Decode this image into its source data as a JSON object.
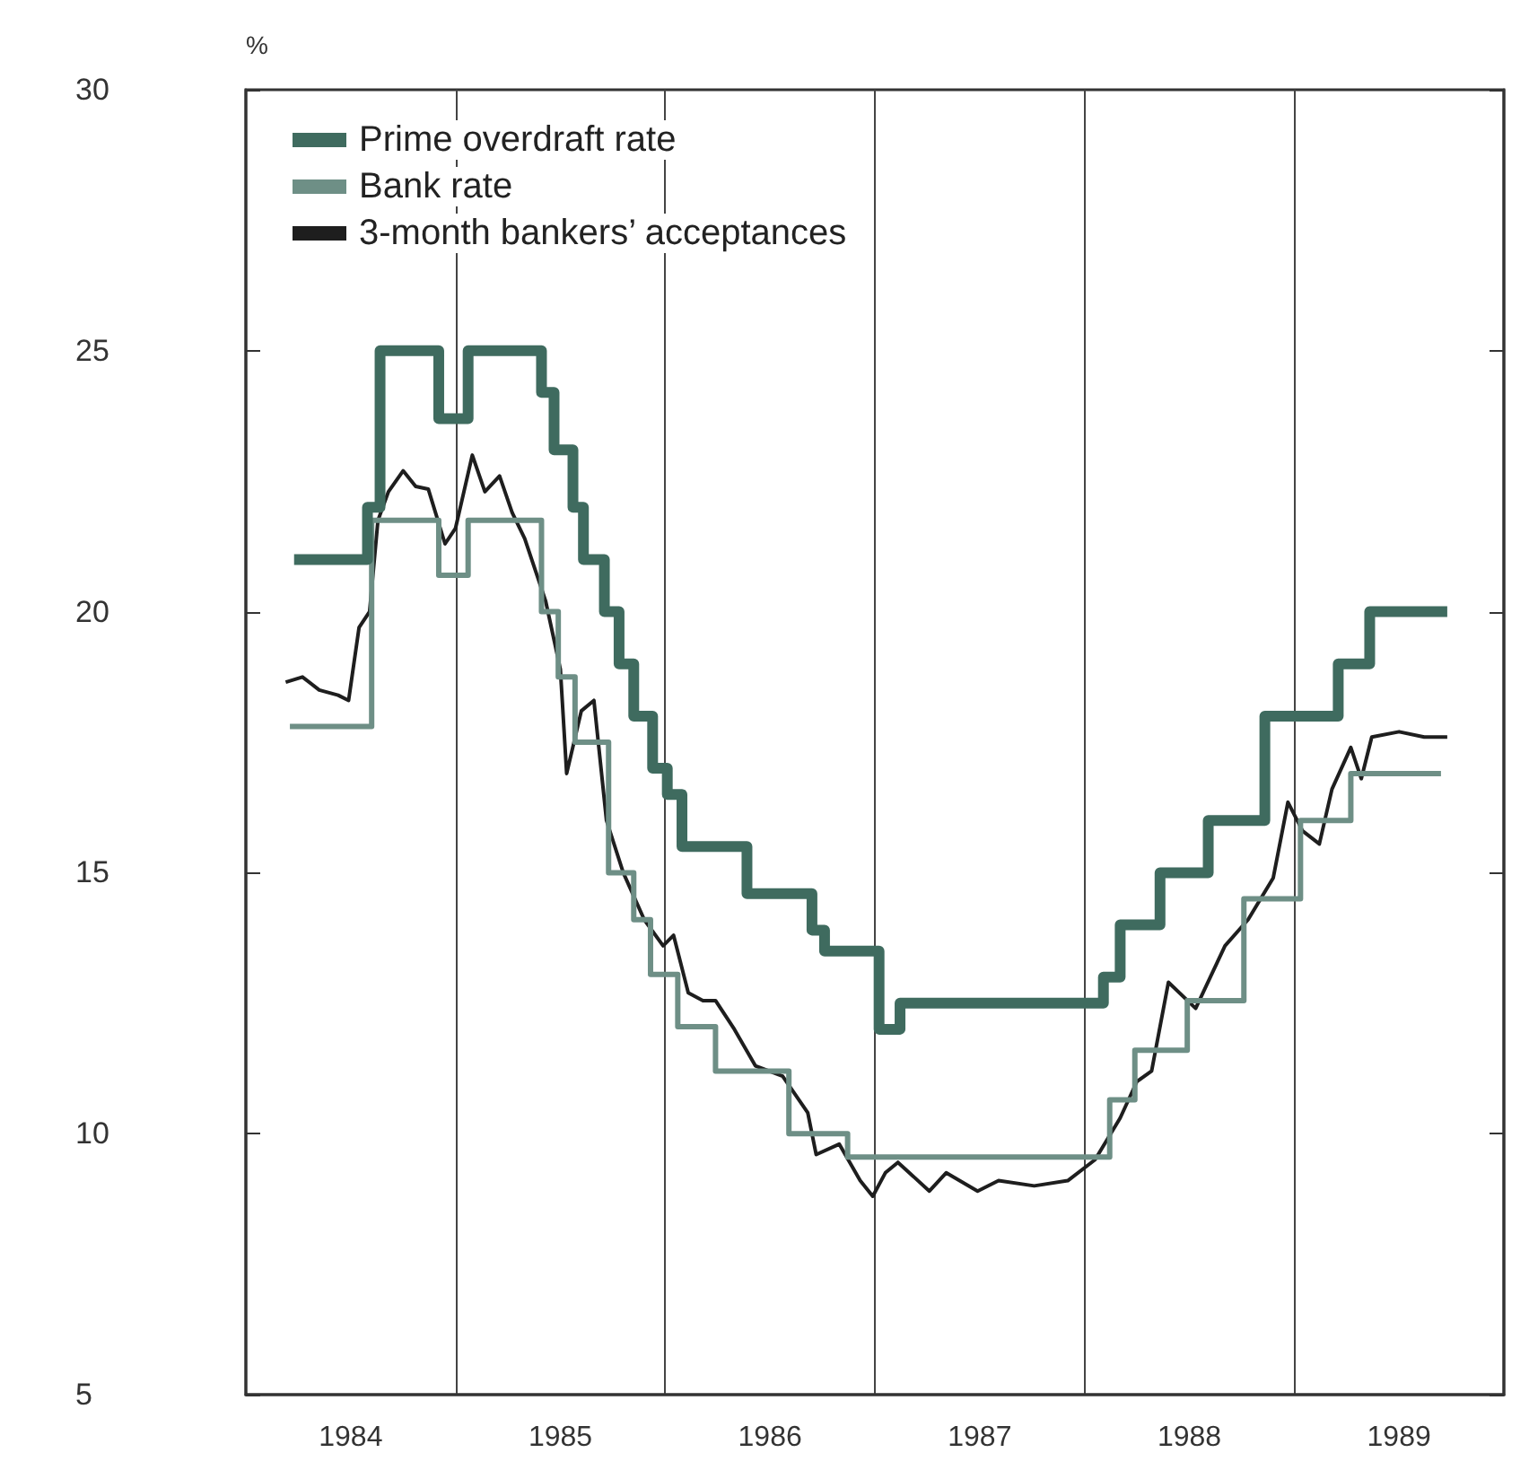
{
  "chart_data": {
    "type": "step",
    "ylabel": "%",
    "xlim": [
      1984,
      1990
    ],
    "ylim": [
      5,
      30
    ],
    "xticks": [
      {
        "value": 1984.5,
        "label": "1984"
      },
      {
        "value": 1985,
        "label": null
      },
      {
        "value": 1985.5,
        "label": "1985"
      },
      {
        "value": 1986,
        "label": null
      },
      {
        "value": 1986.5,
        "label": "1986"
      },
      {
        "value": 1987,
        "label": null
      },
      {
        "value": 1987.5,
        "label": "1987"
      },
      {
        "value": 1988,
        "label": null
      },
      {
        "value": 1988.5,
        "label": "1988"
      },
      {
        "value": 1989,
        "label": null
      },
      {
        "value": 1989.5,
        "label": "1989"
      }
    ],
    "yticks": [
      5,
      10,
      15,
      20,
      25,
      30
    ],
    "grid": "x",
    "legend": "top left",
    "marker": "none",
    "series": [
      {
        "name": "Prime overdraft rate",
        "color": "#3f6b5f",
        "x": [
          1984.23,
          1984.58,
          1984.64,
          1984.92,
          1985.06,
          1985.41,
          1985.47,
          1985.56,
          1985.61,
          1985.71,
          1985.78,
          1985.85,
          1985.94,
          1986.01,
          1986.08,
          1986.39,
          1986.7,
          1986.76,
          1987.02,
          1987.12,
          1988.09,
          1988.17,
          1988.36,
          1988.59,
          1988.86,
          1989.21,
          1989.36,
          1989.73
        ],
        "values": [
          21,
          22,
          25,
          23.7,
          25,
          24.2,
          23.1,
          22,
          21,
          20,
          19,
          18,
          17,
          16.5,
          15.5,
          14.6,
          13.9,
          13.5,
          12,
          12.5,
          13,
          14,
          15,
          16,
          18,
          19,
          20,
          20
        ]
      },
      {
        "name": "Bank rate",
        "color": "#6e8f86",
        "x": [
          1984.21,
          1984.6,
          1984.92,
          1985.06,
          1985.41,
          1985.49,
          1985.57,
          1985.73,
          1985.85,
          1985.93,
          1986.06,
          1986.24,
          1986.59,
          1986.87,
          1988.12,
          1988.24,
          1988.49,
          1988.76,
          1989.03,
          1989.27,
          1989.7
        ],
        "values": [
          17.8,
          21.75,
          20.7,
          21.75,
          20,
          18.75,
          17.5,
          15,
          14.1,
          13.05,
          12.05,
          11.2,
          10,
          9.55,
          10.65,
          11.6,
          12.55,
          14.5,
          16,
          16.9,
          16.9
        ]
      },
      {
        "name": "3-month bankers’ acceptances",
        "type": "line",
        "color": "#1e1e1e",
        "x": [
          1984.19,
          1984.27,
          1984.35,
          1984.44,
          1984.49,
          1984.54,
          1984.59,
          1984.63,
          1984.68,
          1984.75,
          1984.81,
          1984.87,
          1984.95,
          1985.0,
          1985.08,
          1985.14,
          1985.21,
          1985.27,
          1985.33,
          1985.43,
          1985.5,
          1985.53,
          1985.6,
          1985.66,
          1985.72,
          1985.8,
          1985.9,
          1985.99,
          1986.04,
          1986.11,
          1986.18,
          1986.24,
          1986.33,
          1986.43,
          1986.56,
          1986.68,
          1986.72,
          1986.83,
          1986.93,
          1986.99,
          1987.05,
          1987.11,
          1987.26,
          1987.34,
          1987.49,
          1987.59,
          1987.76,
          1987.92,
          1988.05,
          1988.17,
          1988.25,
          1988.32,
          1988.4,
          1988.53,
          1988.67,
          1988.78,
          1988.9,
          1988.97,
          1989.04,
          1989.12,
          1989.18,
          1989.27,
          1989.32,
          1989.37,
          1989.5,
          1989.62,
          1989.73
        ],
        "values": [
          18.65,
          18.75,
          18.5,
          18.4,
          18.3,
          19.7,
          20,
          21.75,
          22.3,
          22.7,
          22.4,
          22.35,
          21.3,
          21.6,
          23,
          22.3,
          22.6,
          21.9,
          21.4,
          20.2,
          18.9,
          16.9,
          18.1,
          18.3,
          16,
          15,
          14.1,
          13.6,
          13.8,
          12.7,
          12.55,
          12.55,
          12,
          11.3,
          11.1,
          10.4,
          9.6,
          9.8,
          9.1,
          8.8,
          9.25,
          9.45,
          8.9,
          9.25,
          8.9,
          9.1,
          9,
          9.1,
          9.5,
          10.3,
          11,
          11.2,
          12.9,
          12.4,
          13.6,
          14.1,
          14.9,
          16.35,
          15.8,
          15.55,
          16.6,
          17.4,
          16.8,
          17.6,
          17.7,
          17.6,
          17.6
        ]
      }
    ]
  }
}
